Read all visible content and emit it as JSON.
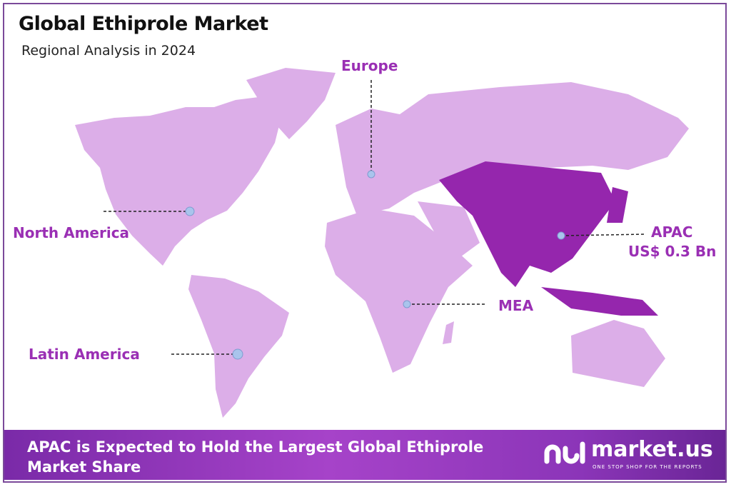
{
  "header": {
    "title": "Global Ethiprole Market",
    "subtitle": "Regional Analysis in 2024"
  },
  "colors": {
    "land": "#dcaee8",
    "highlight": "#9526ad",
    "label": "#9a2fb4",
    "marker": "#a9c4ec",
    "banner": "#9a3cc4"
  },
  "regions": [
    {
      "label": "North America",
      "highlighted": false
    },
    {
      "label": "Europe",
      "highlighted": false
    },
    {
      "label": "APAC",
      "value": "US$ 0.3 Bn",
      "highlighted": true
    },
    {
      "label": "MEA",
      "highlighted": false
    },
    {
      "label": "Latin America",
      "highlighted": false
    }
  ],
  "banner": {
    "text": "APAC is Expected to Hold the Largest Global Ethiprole Market Share"
  },
  "logo": {
    "name": "market.us",
    "tagline": "ONE STOP SHOP FOR THE REPORTS"
  }
}
